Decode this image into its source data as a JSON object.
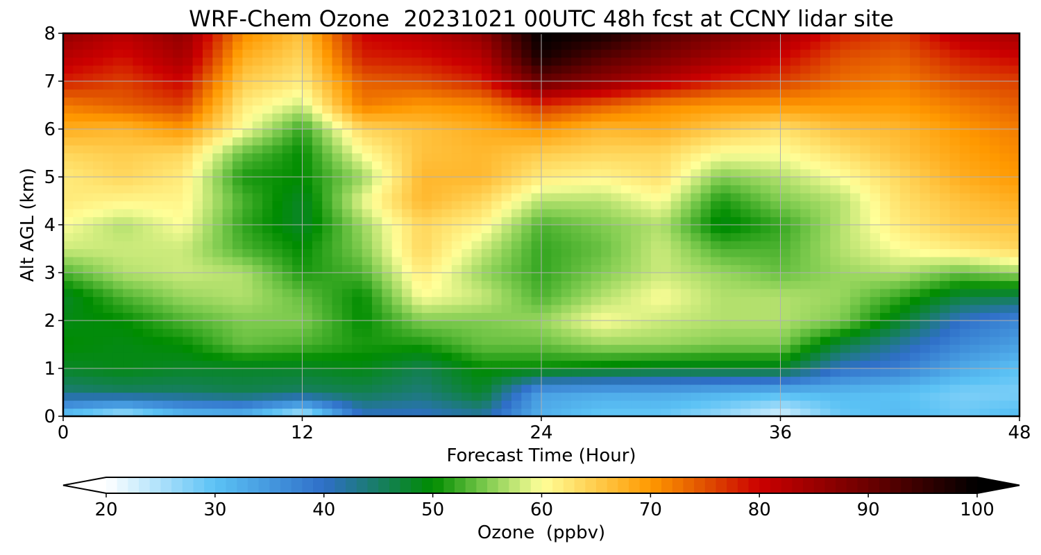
{
  "chart_data": {
    "type": "heatmap",
    "title": "WRF-Chem Ozone  20231021 00UTC 48h fcst at CCNY lidar site",
    "xlabel": "Forecast Time (Hour)",
    "ylabel": "Alt AGL (km)",
    "xlim": [
      0,
      48
    ],
    "ylim": [
      0,
      8
    ],
    "x_ticks": [
      0,
      12,
      24,
      36,
      48
    ],
    "y_ticks": [
      0,
      1,
      2,
      3,
      4,
      5,
      6,
      7,
      8
    ],
    "grid": true,
    "x": [
      0,
      3,
      6,
      9,
      12,
      15,
      18,
      21,
      24,
      27,
      30,
      33,
      36,
      39,
      42,
      45,
      48
    ],
    "y": [
      0,
      0.5,
      1,
      1.5,
      2,
      2.5,
      3,
      3.5,
      4,
      4.5,
      5,
      5.5,
      6,
      6.5,
      7,
      7.5,
      8
    ],
    "values": [
      [
        29,
        24,
        30,
        31,
        23,
        40,
        40,
        42,
        32,
        29,
        29,
        26,
        22,
        29,
        31,
        29,
        31
      ],
      [
        44,
        45,
        45,
        46,
        45,
        46,
        44,
        48,
        34,
        33,
        33,
        32,
        31,
        31,
        30,
        28,
        28
      ],
      [
        48,
        49,
        48,
        48,
        48,
        49,
        46,
        50,
        50,
        49,
        48,
        48,
        48,
        40,
        38,
        33,
        30
      ],
      [
        50,
        49,
        50,
        54,
        53,
        51,
        51,
        54,
        54,
        56,
        56,
        55,
        55,
        47,
        42,
        37,
        34
      ],
      [
        49,
        50,
        53,
        55,
        55,
        50,
        55,
        55,
        56,
        60,
        58,
        57,
        57,
        55,
        48,
        40,
        37
      ],
      [
        48,
        53,
        56,
        57,
        54,
        50,
        60,
        58,
        53,
        57,
        60,
        57,
        57,
        56,
        52,
        47,
        46
      ],
      [
        53,
        57,
        58,
        57,
        51,
        53,
        62,
        56,
        52,
        55,
        58,
        56,
        54,
        56,
        57,
        54,
        56
      ],
      [
        58,
        58,
        58,
        53,
        50,
        55,
        64,
        58,
        52,
        54,
        58,
        53,
        53,
        57,
        60,
        62,
        64
      ],
      [
        60,
        57,
        60,
        52,
        48,
        56,
        64,
        61,
        53,
        55,
        57,
        49,
        52,
        57,
        62,
        65,
        66
      ],
      [
        62,
        61,
        61,
        53,
        48,
        59,
        67,
        64,
        57,
        57,
        60,
        51,
        55,
        57,
        63,
        66,
        68
      ],
      [
        62,
        64,
        62,
        51,
        50,
        56,
        67,
        67,
        62,
        61,
        63,
        55,
        57,
        60,
        64,
        68,
        70
      ],
      [
        64,
        65,
        64,
        54,
        50,
        60,
        66,
        67,
        65,
        64,
        64,
        60,
        60,
        63,
        66,
        69,
        71
      ],
      [
        68,
        67,
        70,
        60,
        52,
        64,
        66,
        68,
        70,
        67,
        68,
        65,
        63,
        66,
        67,
        70,
        72
      ],
      [
        72,
        74,
        76,
        62,
        58,
        72,
        70,
        71,
        77,
        74,
        71,
        70,
        70,
        70,
        70,
        72,
        74
      ],
      [
        78,
        76,
        80,
        65,
        62,
        74,
        75,
        78,
        90,
        86,
        82,
        78,
        76,
        73,
        72,
        75,
        76
      ],
      [
        82,
        79,
        84,
        68,
        64,
        78,
        79,
        82,
        98,
        92,
        88,
        84,
        80,
        75,
        74,
        78,
        80
      ],
      [
        86,
        82,
        86,
        71,
        66,
        80,
        82,
        86,
        100,
        98,
        92,
        88,
        84,
        78,
        76,
        82,
        84
      ]
    ],
    "colorbar": {
      "label": "Ozone  (ppbv)",
      "min": 20,
      "max": 100,
      "ticks": [
        20,
        30,
        40,
        50,
        60,
        70,
        80,
        90,
        100
      ],
      "extend": "both",
      "stops": [
        {
          "value": 20,
          "color": "#ffffff"
        },
        {
          "value": 30,
          "color": "#5bc2f5"
        },
        {
          "value": 40,
          "color": "#2f6fc8"
        },
        {
          "value": 50,
          "color": "#008c00"
        },
        {
          "value": 55,
          "color": "#80cc50"
        },
        {
          "value": 60,
          "color": "#ffff99"
        },
        {
          "value": 70,
          "color": "#ff9900"
        },
        {
          "value": 75,
          "color": "#e05000"
        },
        {
          "value": 80,
          "color": "#cc0000"
        },
        {
          "value": 90,
          "color": "#6b0000"
        },
        {
          "value": 100,
          "color": "#000000"
        }
      ]
    }
  }
}
